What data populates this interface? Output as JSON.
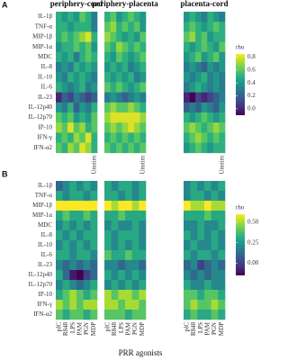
{
  "chart_data": [
    {
      "type": "heatmap",
      "panel_label": "A",
      "colormap": "viridis",
      "legend_title": "rho",
      "clim": [
        -0.1,
        0.85
      ],
      "cticks": [
        {
          "value": 0,
          "label": "0.0"
        },
        0.2,
        0.4,
        0.6,
        0.8
      ],
      "rows": [
        "IL-1β",
        "TNF-α",
        "MIP-1β",
        "MIP-1α",
        "MDC",
        "IL-8",
        "IL-10",
        "IL-6",
        "IL-23",
        "IL-12p40",
        "IL-12p70",
        "IP-10",
        "IFN-γ",
        "IFN-α2"
      ],
      "categories": [
        null,
        null,
        null,
        null,
        null,
        null,
        "Unstim"
      ],
      "facets": [
        {
          "title": "periphery-cord",
          "values": [
            [
              0.5,
              0.4,
              0.5,
              0.4,
              0.6,
              0.5,
              0.3
            ],
            [
              0.5,
              0.5,
              0.4,
              0.5,
              0.5,
              0.5,
              0.3
            ],
            [
              0.5,
              0.6,
              0.5,
              0.6,
              0.7,
              0.8,
              0.5
            ],
            [
              0.4,
              0.5,
              0.5,
              0.6,
              0.5,
              0.6,
              0.4
            ],
            [
              0.5,
              0.4,
              0.5,
              0.3,
              0.5,
              0.6,
              0.5
            ],
            [
              0.3,
              0.4,
              0.3,
              0.5,
              0.4,
              0.5,
              0.4
            ],
            [
              0.4,
              0.3,
              0.5,
              0.4,
              0.5,
              0.4,
              0.3
            ],
            [
              0.5,
              0.4,
              0.3,
              0.4,
              0.5,
              0.3,
              0.4
            ],
            [
              0.0,
              0.2,
              0.1,
              0.3,
              0.2,
              0.1,
              0.2
            ],
            [
              0.4,
              0.3,
              0.5,
              0.2,
              0.4,
              0.3,
              0.5
            ],
            [
              0.6,
              0.5,
              0.6,
              0.4,
              0.5,
              0.4,
              0.6
            ],
            [
              0.7,
              0.6,
              0.8,
              0.6,
              0.7,
              0.5,
              0.6
            ],
            [
              0.5,
              0.6,
              0.5,
              0.7,
              0.6,
              0.8,
              0.5
            ],
            [
              0.6,
              0.5,
              0.7,
              0.6,
              0.8,
              0.7,
              0.5
            ]
          ]
        },
        {
          "title": "periphery-placenta",
          "values": [
            [
              0.5,
              0.6,
              0.4,
              0.5,
              0.6,
              0.5,
              0.4
            ],
            [
              0.6,
              0.7,
              0.5,
              0.6,
              0.5,
              0.6,
              0.4
            ],
            [
              0.7,
              0.6,
              0.5,
              0.4,
              0.5,
              0.4,
              0.6
            ],
            [
              0.6,
              0.5,
              0.7,
              0.6,
              0.5,
              0.6,
              0.5
            ],
            [
              0.5,
              0.4,
              0.6,
              0.5,
              0.4,
              0.5,
              0.6
            ],
            [
              0.4,
              0.5,
              0.4,
              0.5,
              0.3,
              0.4,
              0.5
            ],
            [
              0.5,
              0.4,
              0.5,
              0.4,
              0.5,
              0.3,
              0.4
            ],
            [
              0.6,
              0.5,
              0.6,
              0.5,
              0.4,
              0.5,
              0.6
            ],
            [
              0.3,
              0.4,
              0.3,
              0.2,
              0.3,
              0.4,
              0.3
            ],
            [
              0.6,
              0.7,
              0.6,
              0.6,
              0.7,
              0.6,
              0.5
            ],
            [
              0.7,
              0.8,
              0.8,
              0.8,
              0.8,
              0.8,
              0.7
            ],
            [
              0.6,
              0.7,
              0.6,
              0.7,
              0.8,
              0.7,
              0.6
            ],
            [
              0.5,
              0.6,
              0.5,
              0.6,
              0.5,
              0.6,
              0.5
            ],
            [
              0.6,
              0.5,
              0.6,
              0.5,
              0.6,
              0.5,
              0.6
            ]
          ]
        },
        {
          "title": "placenta-cord",
          "values": [
            [
              0.4,
              0.5,
              0.4,
              0.3,
              0.5,
              0.4,
              0.3
            ],
            [
              0.5,
              0.6,
              0.5,
              0.4,
              0.5,
              0.6,
              0.5
            ],
            [
              0.6,
              0.7,
              0.5,
              0.6,
              0.4,
              0.5,
              0.5
            ],
            [
              0.5,
              0.4,
              0.5,
              0.6,
              0.5,
              0.4,
              0.6
            ],
            [
              0.4,
              0.5,
              0.6,
              0.4,
              0.5,
              0.6,
              0.4
            ],
            [
              0.3,
              0.4,
              0.3,
              0.2,
              0.4,
              0.3,
              0.4
            ],
            [
              0.4,
              0.3,
              0.4,
              0.5,
              0.3,
              0.4,
              0.3
            ],
            [
              0.3,
              0.4,
              0.5,
              0.4,
              0.3,
              0.4,
              0.3
            ],
            [
              0.0,
              -0.1,
              0.1,
              0.0,
              0.1,
              0.2,
              0.3
            ],
            [
              0.2,
              0.3,
              0.2,
              0.4,
              0.3,
              0.2,
              0.4
            ],
            [
              0.5,
              0.4,
              0.5,
              0.6,
              0.5,
              0.4,
              0.5
            ],
            [
              0.6,
              0.7,
              0.6,
              0.5,
              0.6,
              0.7,
              0.6
            ],
            [
              0.5,
              0.6,
              0.7,
              0.6,
              0.5,
              0.6,
              0.5
            ],
            [
              0.4,
              0.5,
              0.6,
              0.5,
              0.4,
              0.5,
              0.5
            ]
          ]
        }
      ]
    },
    {
      "type": "heatmap",
      "panel_label": "B",
      "colormap": "viridis",
      "legend_title": "rho",
      "clim": [
        -0.15,
        0.6
      ],
      "cticks": [
        {
          "value": 0,
          "label": "0.00"
        },
        {
          "value": 0.25,
          "label": "0.25"
        },
        {
          "value": 0.5,
          "label": "0.50"
        }
      ],
      "x_label": "PRR agonists",
      "rows": [
        "IL-1β",
        "TNF-α",
        "MIP-1β",
        "MIP-1α",
        "MDC",
        "IL-8",
        "IL-10",
        "IL-6",
        "IL-23",
        "IL-12p40",
        "IL-12p70",
        "IP-10",
        "IFN-γ",
        "IFN-α2"
      ],
      "categories": [
        "pIC",
        "R848",
        "LPS",
        "PAM",
        "PGN",
        "MDP"
      ],
      "facets": [
        {
          "values": [
            [
              0.1,
              0.2,
              0.3,
              0.2,
              0.3,
              0.2
            ],
            [
              0.3,
              0.2,
              0.3,
              0.3,
              0.2,
              0.3
            ],
            [
              0.6,
              0.6,
              0.6,
              0.6,
              0.6,
              0.6
            ],
            [
              0.3,
              0.4,
              0.3,
              0.3,
              0.4,
              0.3
            ],
            [
              0.2,
              0.3,
              0.2,
              0.3,
              0.2,
              0.3
            ],
            [
              0.3,
              0.2,
              0.3,
              0.2,
              0.3,
              0.3
            ],
            [
              0.2,
              0.3,
              0.2,
              0.3,
              0.2,
              0.3
            ],
            [
              0.3,
              0.3,
              0.2,
              0.3,
              0.3,
              0.2
            ],
            [
              0.2,
              0.1,
              0.2,
              0.1,
              0.2,
              0.1
            ],
            [
              0.3,
              0.1,
              -0.1,
              -0.15,
              0.0,
              0.1
            ],
            [
              0.2,
              0.3,
              0.2,
              0.1,
              0.2,
              0.3
            ],
            [
              0.3,
              0.4,
              0.5,
              0.4,
              0.3,
              0.4
            ],
            [
              0.5,
              0.4,
              0.5,
              0.4,
              0.5,
              0.5
            ],
            [
              0.4,
              0.3,
              0.4,
              0.4,
              0.3,
              0.4
            ]
          ]
        },
        {
          "values": [
            [
              0.3,
              0.2,
              0.3,
              0.3,
              0.2,
              0.3
            ],
            [
              0.3,
              0.3,
              0.2,
              0.3,
              0.2,
              0.3
            ],
            [
              0.6,
              0.5,
              0.6,
              0.6,
              0.5,
              0.6
            ],
            [
              0.3,
              0.3,
              0.4,
              0.3,
              0.3,
              0.3
            ],
            [
              0.2,
              0.3,
              0.2,
              0.2,
              0.3,
              0.2
            ],
            [
              0.3,
              0.2,
              0.3,
              0.3,
              0.3,
              0.2
            ],
            [
              0.3,
              0.2,
              0.3,
              0.2,
              0.3,
              0.2
            ],
            [
              0.4,
              0.3,
              0.3,
              0.4,
              0.3,
              0.3
            ],
            [
              0.2,
              0.2,
              0.1,
              0.2,
              0.2,
              0.1
            ],
            [
              0.3,
              0.2,
              0.3,
              0.2,
              0.3,
              0.2
            ],
            [
              0.2,
              0.3,
              0.2,
              0.3,
              0.2,
              0.3
            ],
            [
              0.5,
              0.4,
              0.5,
              0.5,
              0.4,
              0.5
            ],
            [
              0.5,
              0.5,
              0.4,
              0.5,
              0.5,
              0.4
            ],
            [
              0.4,
              0.4,
              0.4,
              0.3,
              0.4,
              0.4
            ]
          ]
        },
        {
          "values": [
            [
              0.2,
              0.3,
              0.2,
              0.3,
              0.2,
              0.3
            ],
            [
              0.2,
              0.3,
              0.3,
              0.2,
              0.3,
              0.2
            ],
            [
              0.6,
              0.5,
              0.5,
              0.6,
              0.5,
              0.5
            ],
            [
              0.3,
              0.3,
              0.3,
              0.4,
              0.3,
              0.3
            ],
            [
              0.2,
              0.2,
              0.3,
              0.2,
              0.2,
              0.3
            ],
            [
              0.3,
              0.2,
              0.3,
              0.2,
              0.3,
              0.2
            ],
            [
              0.2,
              0.3,
              0.2,
              0.2,
              0.3,
              0.2
            ],
            [
              0.3,
              0.2,
              0.3,
              0.3,
              0.2,
              0.3
            ],
            [
              0.1,
              0.2,
              0.0,
              0.1,
              0.2,
              0.1
            ],
            [
              0.2,
              0.1,
              0.2,
              0.1,
              0.2,
              0.2
            ],
            [
              0.3,
              0.2,
              0.2,
              0.3,
              0.2,
              0.2
            ],
            [
              0.4,
              0.4,
              0.3,
              0.4,
              0.4,
              0.3
            ],
            [
              0.4,
              0.5,
              0.4,
              0.4,
              0.5,
              0.4
            ],
            [
              0.3,
              0.4,
              0.3,
              0.3,
              0.4,
              0.3
            ]
          ]
        }
      ]
    }
  ]
}
